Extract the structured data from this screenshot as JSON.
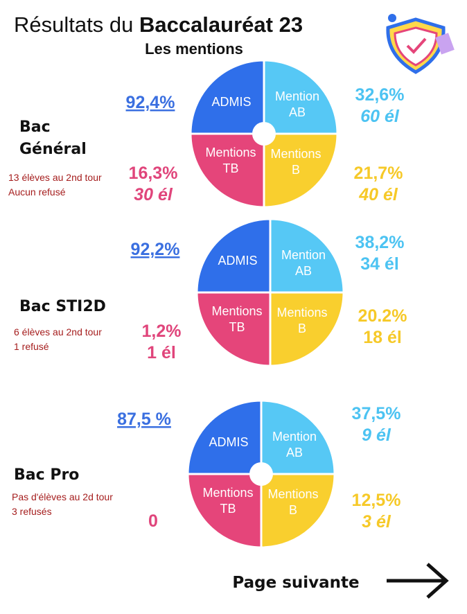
{
  "header": {
    "title_regular": "Résultats du",
    "title_bold": "Baccalauréat 23",
    "subtitle": "Les mentions"
  },
  "sections": [
    {
      "name": [
        "Bac",
        "Général"
      ],
      "notes": [
        "13 élèves au 2nd tour",
        "Aucun refusé"
      ],
      "quadrants": [
        [
          "ADMIS"
        ],
        [
          "Mention",
          "AB"
        ],
        [
          "Mentions",
          "TB"
        ],
        [
          "Mentions",
          "B"
        ]
      ],
      "admis": "92,4%",
      "ab": [
        "32,6%",
        "60 él"
      ],
      "tb": [
        "16,3%",
        "30 él"
      ],
      "b": [
        "21,7%",
        "40 él"
      ]
    },
    {
      "name": [
        "Bac STI2D"
      ],
      "notes": [
        "6 élèves au 2nd tour",
        "1 refusé"
      ],
      "quadrants": [
        [
          "ADMIS"
        ],
        [
          "Mention",
          "AB"
        ],
        [
          "Mentions",
          "TB"
        ],
        [
          "Mentions",
          "B"
        ]
      ],
      "admis": "92,2%",
      "ab": [
        "38,2%",
        "34 él"
      ],
      "tb": [
        "1,2%",
        "1 él"
      ],
      "b": [
        "20.2%",
        "18 él"
      ]
    },
    {
      "name": [
        "Bac Pro"
      ],
      "notes": [
        "Pas d'élèves au 2d tour",
        "3 refusés"
      ],
      "quadrants": [
        [
          "ADMIS"
        ],
        [
          "Mention",
          "AB"
        ],
        [
          "Mentions",
          "TB"
        ],
        [
          "Mentions",
          "B"
        ]
      ],
      "admis": "87,5 %",
      "ab": [
        "37,5%",
        "9 él"
      ],
      "tb": [
        "0"
      ],
      "b": [
        "12,5%",
        "3 él"
      ]
    }
  ],
  "footer": {
    "next": "Page suivante"
  }
}
